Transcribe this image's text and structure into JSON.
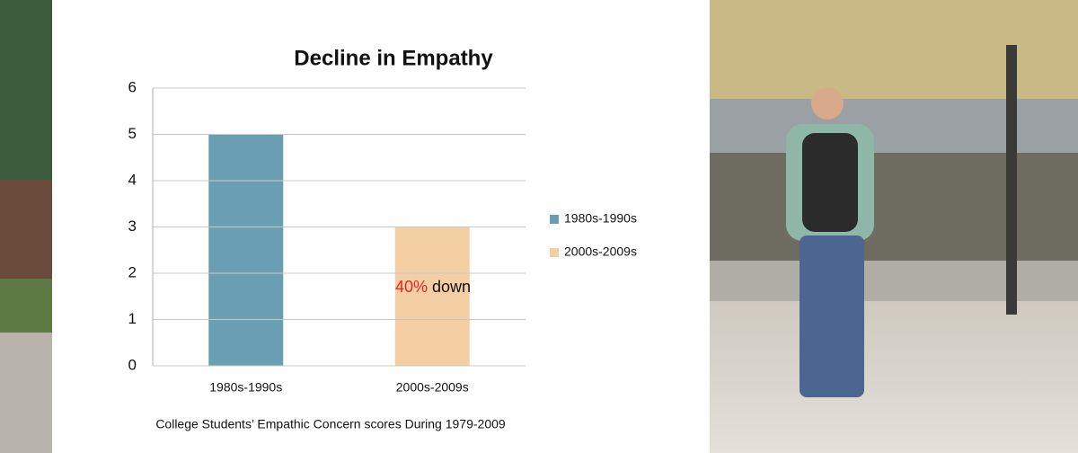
{
  "chart_data": {
    "type": "bar",
    "title": "Decline in Empathy",
    "caption": "College Students’ Empathic Concern scores During 1979-2009",
    "annotation": {
      "highlight": "40%",
      "text": "down"
    },
    "categories": [
      "1980s-1990s",
      "2000s-2009s"
    ],
    "series": [
      {
        "name": "1980s-1990s",
        "color": "#6a9fb3",
        "values": [
          5,
          null
        ]
      },
      {
        "name": "2000s-2009s",
        "color": "#f4cfa4",
        "values": [
          null,
          3
        ]
      }
    ],
    "ylim": [
      0,
      6
    ],
    "yticks": [
      0,
      1,
      2,
      3,
      4,
      5,
      6
    ],
    "grid": true,
    "legend": "right"
  }
}
